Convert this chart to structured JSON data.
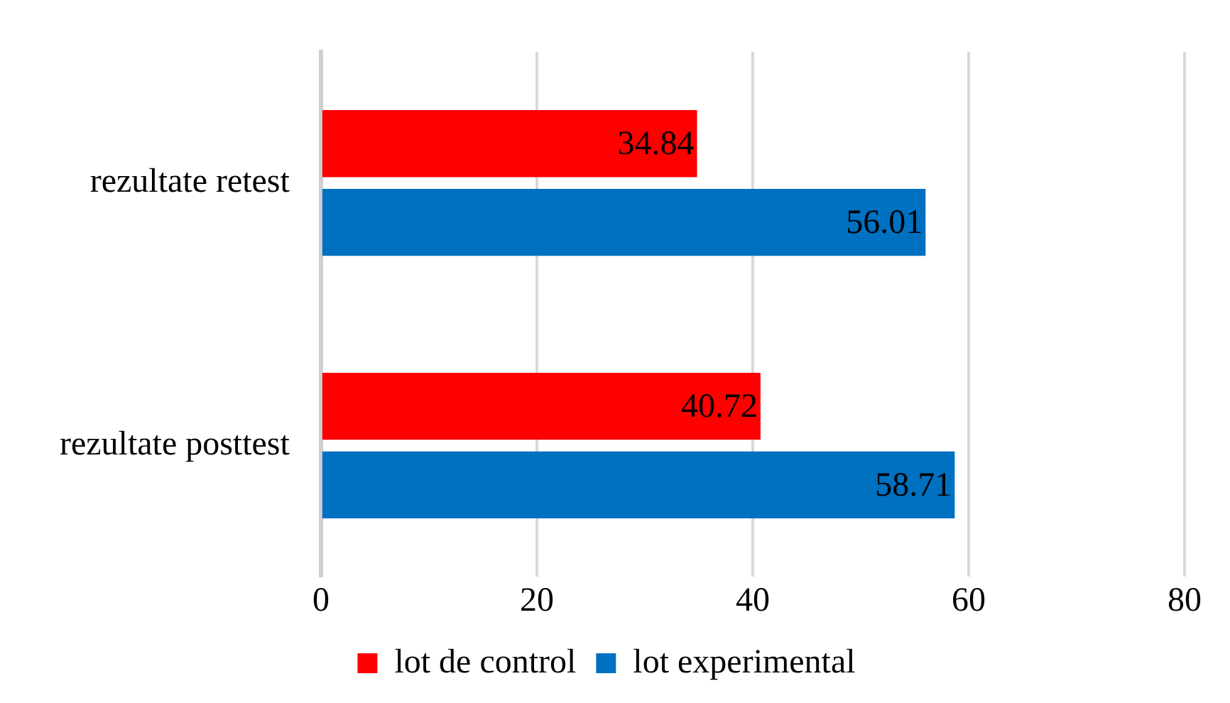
{
  "chart_data": {
    "type": "bar",
    "orientation": "horizontal",
    "categories": [
      "rezultate retest",
      "rezultate posttest"
    ],
    "series": [
      {
        "name": "lot de control",
        "color": "#ff0000",
        "values": [
          34.84,
          40.72
        ]
      },
      {
        "name": "lot experimental",
        "color": "#0070c0",
        "values": [
          56.01,
          58.71
        ]
      }
    ],
    "xlim": [
      0,
      80
    ],
    "xticks": [
      0,
      20,
      40,
      60,
      80
    ],
    "grid": "x",
    "legend": "bottom",
    "data_labels": true
  }
}
